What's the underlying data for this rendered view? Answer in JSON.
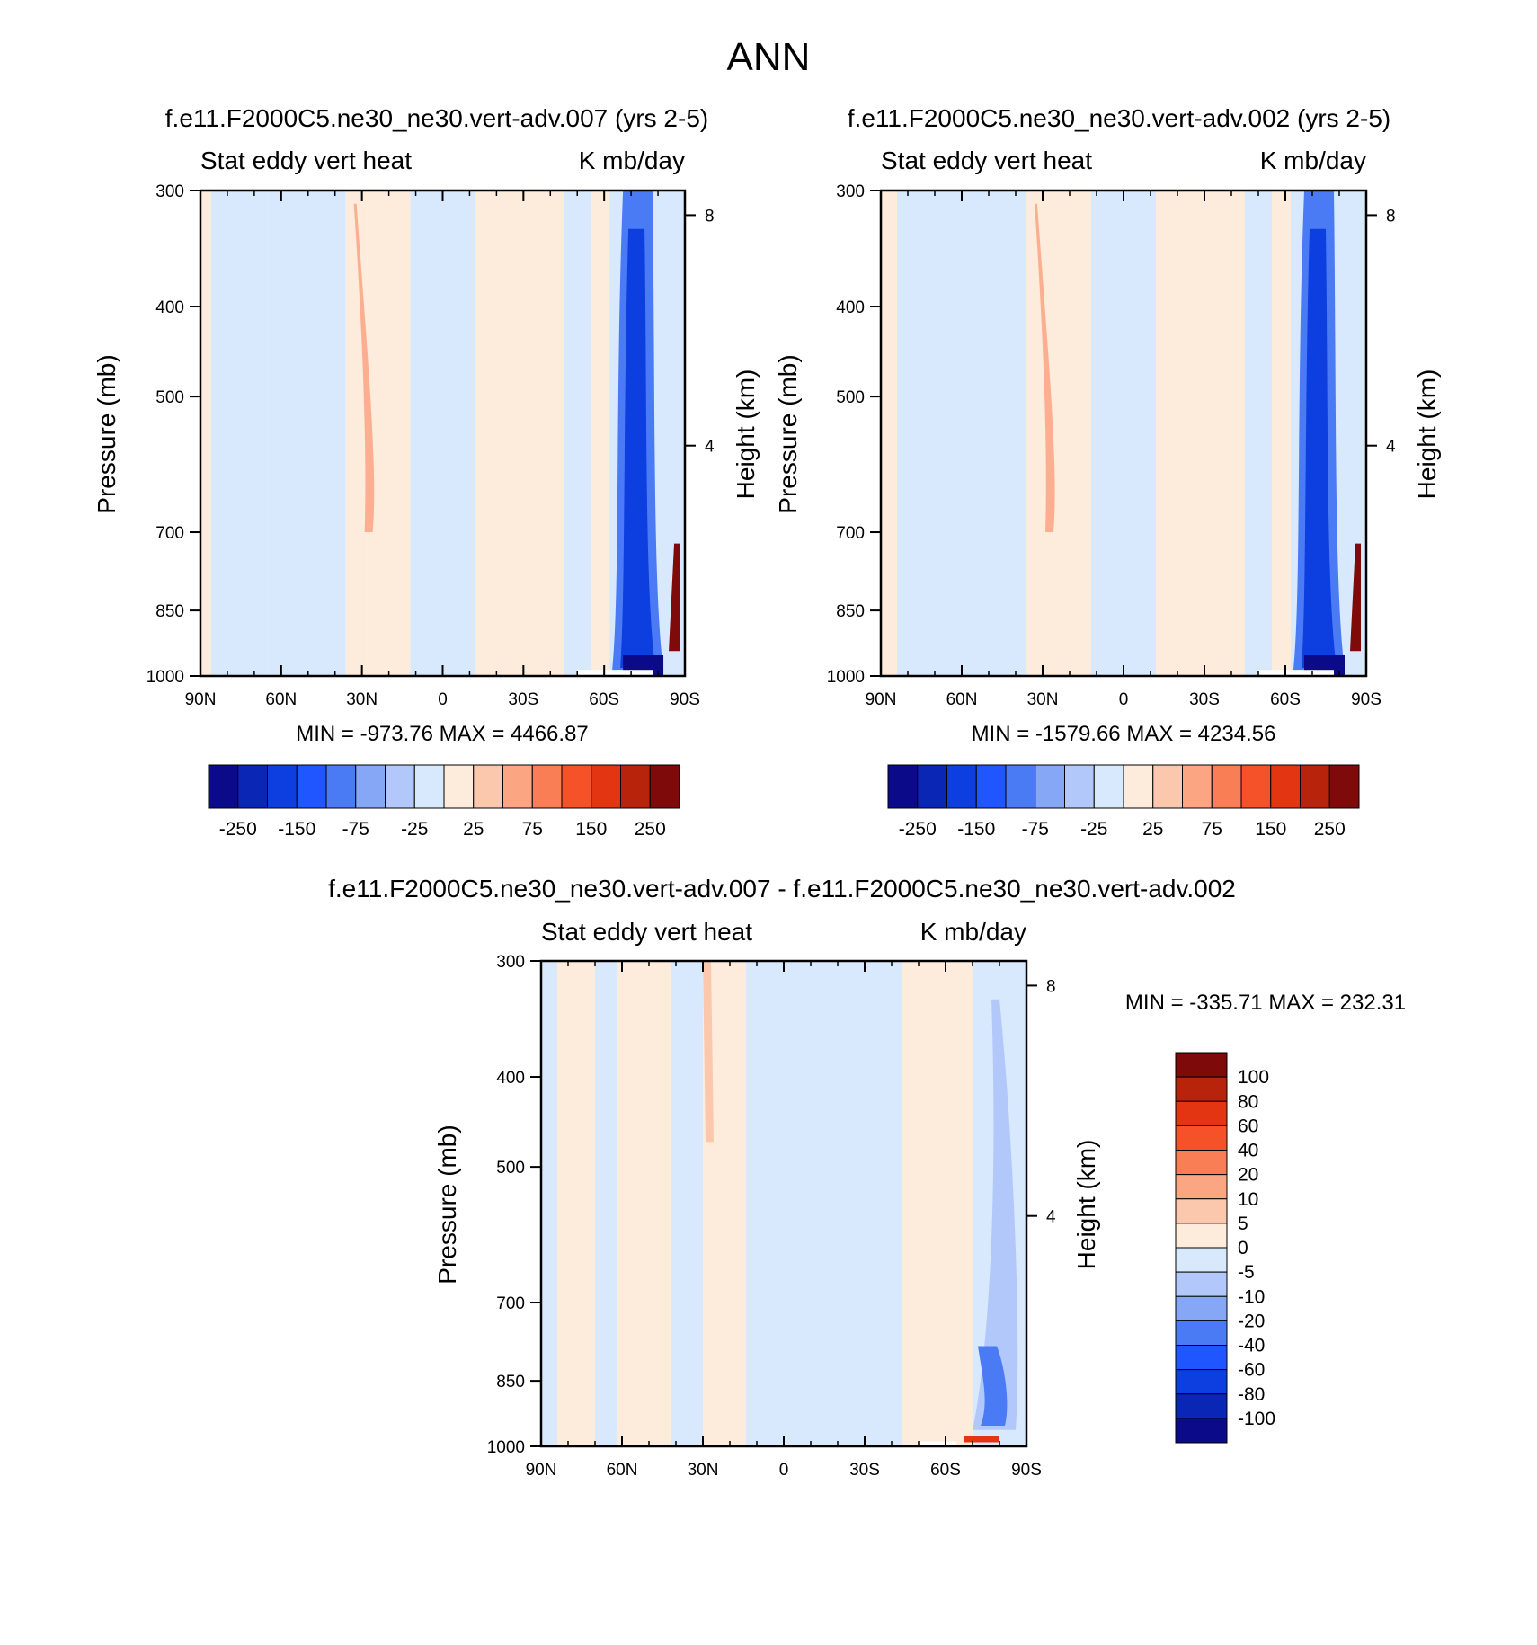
{
  "figure": {
    "title": "ANN"
  },
  "colors": {
    "main_levels": [
      "#0b0b8a",
      "#0a26b4",
      "#0d3ee0",
      "#1f56ff",
      "#4a7bf5",
      "#86a6f6",
      "#b3c8fa",
      "#d8e8fd",
      "#fdecdc",
      "#fcc8ad",
      "#fca582",
      "#f97d55",
      "#f5522a",
      "#e43513",
      "#b8230b",
      "#7e0a0a"
    ],
    "diff_levels": [
      "#0b0b8a",
      "#0a26b4",
      "#0d3ee0",
      "#1f56ff",
      "#4a7bf5",
      "#86a6f6",
      "#b3c8fa",
      "#d8e8fd",
      "#fdecdc",
      "#fcc8ad",
      "#fca582",
      "#f97d55",
      "#f5522a",
      "#e43513",
      "#b8230b",
      "#7e0a0a"
    ]
  },
  "chart_data": [
    {
      "type": "heatmap",
      "title": "f.e11.F2000C5.ne30_ne30.vert-adv.007 (yrs 2-5)",
      "left_string": "Stat eddy vert heat",
      "right_string": "K mb/day",
      "ylabel": "Pressure (mb)",
      "y2label": "Height (km)",
      "x_ticks": [
        "90N",
        "60N",
        "30N",
        "0",
        "30S",
        "60S",
        "90S"
      ],
      "x_range": [
        90,
        -90
      ],
      "y_ticks": [
        300,
        400,
        500,
        700,
        850,
        1000
      ],
      "y_range": [
        300,
        1000
      ],
      "y2_ticks": [
        8,
        4
      ],
      "min_max": "MIN = -973.76   MAX = 4466.87",
      "colorbar_labels": [
        "-250",
        "-150",
        "-75",
        "-25",
        "25",
        "75",
        "150",
        "250"
      ]
    },
    {
      "type": "heatmap",
      "title": "f.e11.F2000C5.ne30_ne30.vert-adv.002 (yrs 2-5)",
      "left_string": "Stat eddy vert heat",
      "right_string": "K mb/day",
      "ylabel": "Pressure (mb)",
      "y2label": "Height (km)",
      "x_ticks": [
        "90N",
        "60N",
        "30N",
        "0",
        "30S",
        "60S",
        "90S"
      ],
      "x_range": [
        90,
        -90
      ],
      "y_ticks": [
        300,
        400,
        500,
        700,
        850,
        1000
      ],
      "y_range": [
        300,
        1000
      ],
      "y2_ticks": [
        8,
        4
      ],
      "min_max": "MIN = -1579.66   MAX = 4234.56",
      "colorbar_labels": [
        "-250",
        "-150",
        "-75",
        "-25",
        "25",
        "75",
        "150",
        "250"
      ]
    },
    {
      "type": "heatmap",
      "title": "f.e11.F2000C5.ne30_ne30.vert-adv.007 - f.e11.F2000C5.ne30_ne30.vert-adv.002",
      "left_string": "Stat eddy vert heat",
      "right_string": "K mb/day",
      "ylabel": "Pressure (mb)",
      "y2label": "Height (km)",
      "x_ticks": [
        "90N",
        "60N",
        "30N",
        "0",
        "30S",
        "60S",
        "90S"
      ],
      "x_range": [
        90,
        -90
      ],
      "y_ticks": [
        300,
        400,
        500,
        700,
        850,
        1000
      ],
      "y_range": [
        300,
        1000
      ],
      "y2_ticks": [
        8,
        4
      ],
      "min_max": "MIN = -335.71   MAX = 232.31",
      "colorbar_labels": [
        "100",
        "80",
        "60",
        "40",
        "20",
        "10",
        "5",
        "0",
        "-5",
        "-10",
        "-20",
        "-40",
        "-60",
        "-80",
        "-100"
      ]
    }
  ]
}
